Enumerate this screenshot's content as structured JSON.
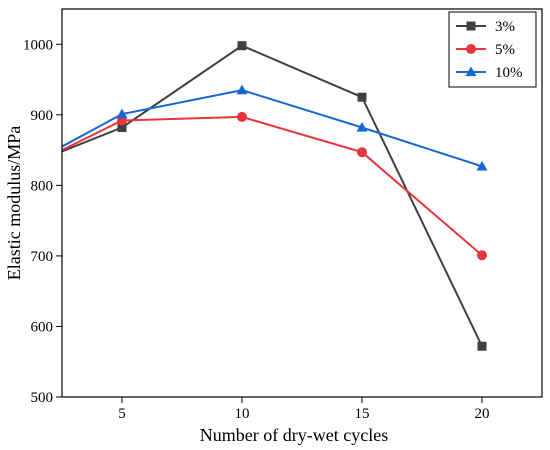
{
  "chart_data": {
    "type": "line",
    "title": "",
    "xlabel": "Number of dry-wet cycles",
    "ylabel": "Elastic modulus/MPa",
    "xlim": [
      2.5,
      22.5
    ],
    "ylim": [
      500,
      1050
    ],
    "x_ticks": [
      5,
      10,
      15,
      20
    ],
    "y_ticks": [
      500,
      600,
      700,
      800,
      900,
      1000
    ],
    "grid": false,
    "legend_position": "top-right",
    "series": [
      {
        "name": "3%",
        "color": "#404040",
        "marker": "square",
        "x": [
          2.5,
          5,
          10,
          15,
          20
        ],
        "y": [
          848,
          882,
          998,
          925,
          572
        ]
      },
      {
        "name": "5%",
        "color": "#e8353b",
        "marker": "circle",
        "x": [
          2.5,
          5,
          10,
          15,
          20
        ],
        "y": [
          850,
          892,
          897,
          847,
          701
        ]
      },
      {
        "name": "10%",
        "color": "#1766d1",
        "marker": "triangle",
        "x": [
          2.5,
          5,
          10,
          15,
          20
        ],
        "y": [
          855,
          901,
          935,
          882,
          827
        ]
      }
    ]
  }
}
